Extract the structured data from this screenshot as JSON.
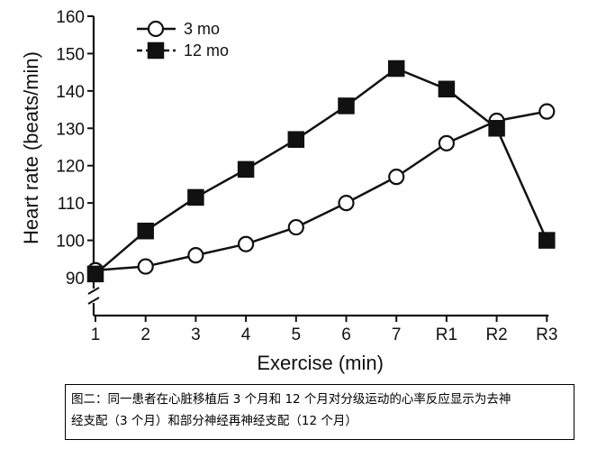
{
  "chart_data": {
    "type": "line",
    "title": "",
    "xlabel": "Exercise (min)",
    "ylabel": "Heart rate (beats/min)",
    "categories": [
      "1",
      "2",
      "3",
      "4",
      "5",
      "6",
      "7",
      "R1",
      "R2",
      "R3"
    ],
    "yticks": [
      "90",
      "100",
      "110",
      "120",
      "130",
      "140",
      "150",
      "160"
    ],
    "ylim": [
      90,
      160
    ],
    "y_axis_break": true,
    "grid": false,
    "legend_position": "top-left",
    "series": [
      {
        "name": "3 mo",
        "marker": "open-circle",
        "values": [
          92,
          93,
          96,
          99,
          103.5,
          110,
          117,
          126,
          132,
          134.5
        ]
      },
      {
        "name": "12 mo",
        "marker": "filled-square",
        "values": [
          91,
          102.5,
          111.5,
          119,
          127,
          136,
          146,
          140.5,
          130,
          100
        ]
      }
    ],
    "colors": {
      "line": "#111111",
      "marker_fill_open": "#ffffff",
      "marker_fill_solid": "#111111"
    }
  },
  "caption": {
    "line1": "图二：同一患者在心脏移植后 3 个月和 12 个月对分级运动的心率反应显示为去神",
    "line2": "经支配（3 个月）和部分神经再神经支配（12 个月）"
  }
}
